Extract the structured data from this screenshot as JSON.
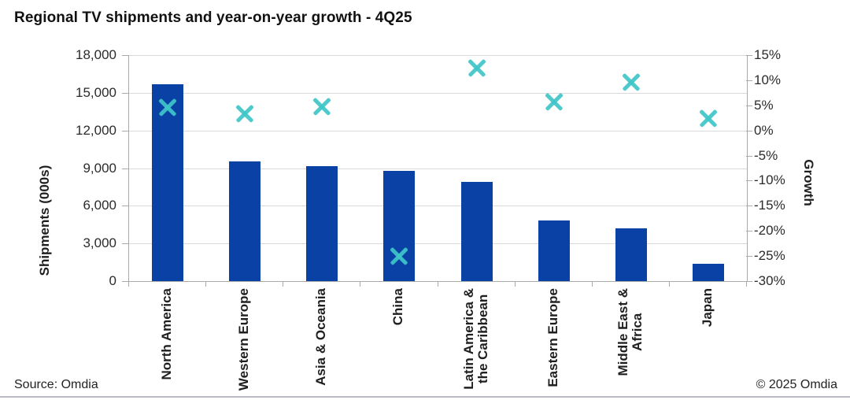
{
  "title": "Regional TV shipments and year-on-year growth - 4Q25",
  "footer": {
    "source": "Source: Omdia",
    "copyright": "© 2025 Omdia"
  },
  "chart_data": {
    "type": "bar",
    "title": "Regional TV shipments and year-on-year growth - 4Q25",
    "categories": [
      "North America",
      "Western Europe",
      "Asia & Oceania",
      "China",
      "Latin America &\nthe Caribbean",
      "Eastern Europe",
      "Middle East &\nAfrica",
      "Japan"
    ],
    "series": [
      {
        "name": "Shipments (000s)",
        "type": "bar",
        "axis": "left",
        "color": "#0a41a5",
        "values": [
          15650,
          9550,
          9150,
          8800,
          7900,
          4800,
          4200,
          1400
        ]
      },
      {
        "name": "Growth",
        "type": "scatter",
        "marker": "x",
        "axis": "right",
        "color": "#3fc6c8",
        "values": [
          4.6,
          3.4,
          4.8,
          -25,
          12.5,
          5.7,
          9.7,
          2.5
        ]
      }
    ],
    "left_axis": {
      "label": "Shipments (000s)",
      "min": 0,
      "max": 18000,
      "step": 3000,
      "tick_labels": [
        "18,000",
        "15,000",
        "12,000",
        "9,000",
        "6,000",
        "3,000",
        "0"
      ]
    },
    "right_axis": {
      "label": "Growth",
      "min": -30,
      "max": 15,
      "step": 5,
      "tick_labels": [
        "15%",
        "10%",
        "5%",
        "0%",
        "-5%",
        "-10%",
        "-15%",
        "-20%",
        "-25%",
        "-30%"
      ]
    },
    "grid": true,
    "legend": "none"
  }
}
